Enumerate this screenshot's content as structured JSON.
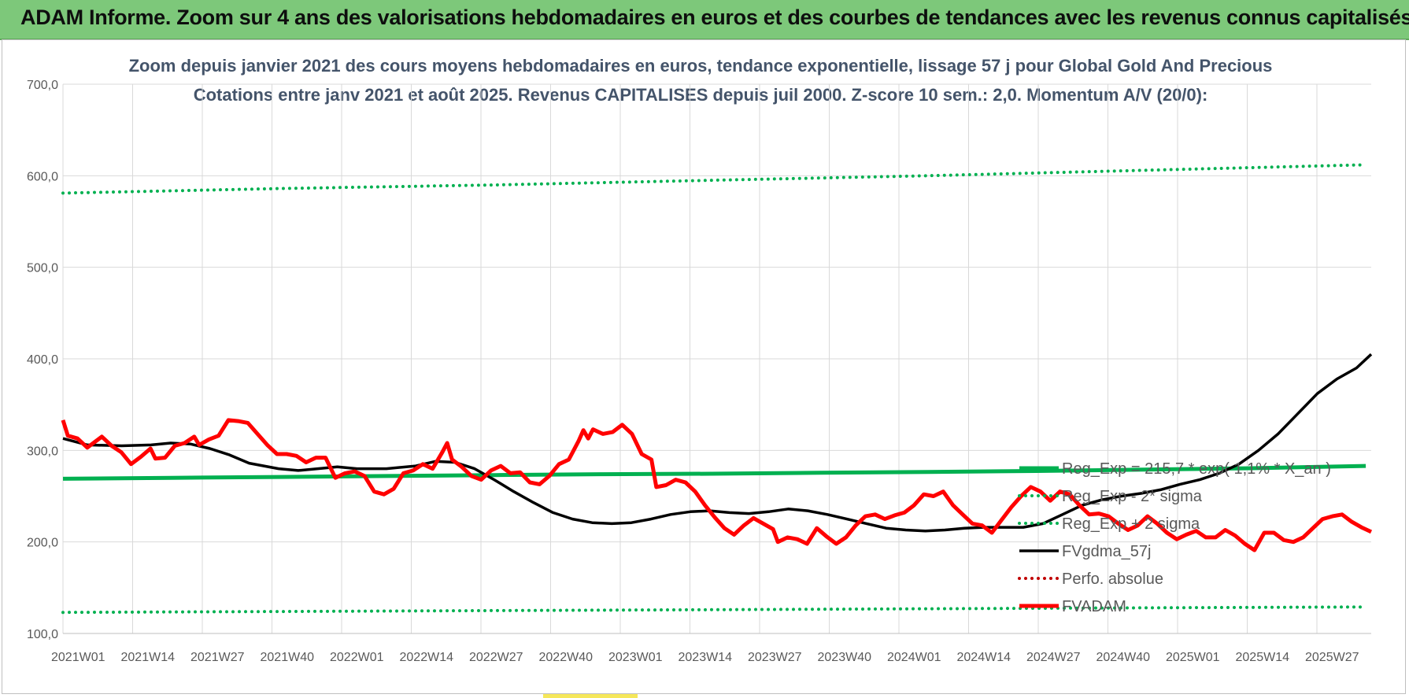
{
  "banner": {
    "title": "ADAM Informe. Zoom sur 4 ans des valorisations hebdomadaires en euros et des courbes de tendances avec les revenus connus capitalisés"
  },
  "colors": {
    "banner": "#7dc87a",
    "trend": "#00b050",
    "smooth": "#000000",
    "price": "#ff0000",
    "perf": "#c00000",
    "title": "#44546a"
  },
  "chart_data": {
    "type": "line",
    "title_line1": "Zoom depuis janvier 2021 des cours moyens hebdomadaires en euros, tendance exponentielle, lissage 57 j pour Global Gold And Precious",
    "title_line2": "Cotations entre janv 2021 et août 2025. Revenus CAPITALISES depuis juil 2000. Z-score 10 sem.: 2,0. Momentum A/V (20/0):",
    "xlabel": "",
    "ylabel": "",
    "ylim": [
      100,
      700
    ],
    "yticks": [
      "100,0",
      "200,0",
      "300,0",
      "400,0",
      "500,0",
      "600,0",
      "700,0"
    ],
    "xticks": [
      "2021W01",
      "2021W14",
      "2021W27",
      "2021W40",
      "2022W01",
      "2022W14",
      "2022W27",
      "2022W40",
      "2023W01",
      "2023W14",
      "2023W27",
      "2023W40",
      "2024W01",
      "2024W14",
      "2024W27",
      "2024W40",
      "2025W01",
      "2025W14",
      "2025W27"
    ],
    "x_total_weeks": 242,
    "grid": true,
    "legend_position": "bottom-right",
    "series": [
      {
        "name": "Reg_Exp = 215,7 * exp( 1,1% * X_an )",
        "style": "solid-thick",
        "color": "#00b050",
        "points": [
          [
            0,
            269
          ],
          [
            20,
            270
          ],
          [
            40,
            271
          ],
          [
            60,
            272
          ],
          [
            80,
            273
          ],
          [
            100,
            274
          ],
          [
            120,
            274.5
          ],
          [
            140,
            275.5
          ],
          [
            160,
            276.5
          ],
          [
            180,
            277.5
          ],
          [
            200,
            279
          ],
          [
            220,
            280.5
          ],
          [
            241,
            283
          ]
        ]
      },
      {
        "name": "Reg_Exp - 2* sigma",
        "style": "dotted",
        "color": "#00b050",
        "points": [
          [
            0,
            123
          ],
          [
            40,
            124
          ],
          [
            80,
            125
          ],
          [
            120,
            126
          ],
          [
            160,
            127
          ],
          [
            200,
            128
          ],
          [
            241,
            129
          ]
        ]
      },
      {
        "name": "Reg_Exp + 2 sigma",
        "style": "dotted",
        "color": "#00b050",
        "points": [
          [
            0,
            581
          ],
          [
            40,
            586
          ],
          [
            80,
            590
          ],
          [
            120,
            595
          ],
          [
            160,
            600
          ],
          [
            200,
            606
          ],
          [
            241,
            612
          ]
        ]
      },
      {
        "name": "FVgdma_57j",
        "style": "solid",
        "color": "#000000",
        "points": [
          [
            0,
            313
          ],
          [
            5,
            306
          ],
          [
            12,
            305
          ],
          [
            18,
            306
          ],
          [
            22,
            308
          ],
          [
            26,
            307
          ],
          [
            30,
            302
          ],
          [
            34,
            295
          ],
          [
            38,
            286
          ],
          [
            44,
            280
          ],
          [
            48,
            278
          ],
          [
            52,
            280
          ],
          [
            56,
            282
          ],
          [
            60,
            280
          ],
          [
            66,
            280
          ],
          [
            72,
            283
          ],
          [
            76,
            288
          ],
          [
            80,
            287
          ],
          [
            84,
            280
          ],
          [
            88,
            268
          ],
          [
            92,
            255
          ],
          [
            96,
            243
          ],
          [
            100,
            232
          ],
          [
            104,
            225
          ],
          [
            108,
            221
          ],
          [
            112,
            220
          ],
          [
            116,
            221
          ],
          [
            120,
            225
          ],
          [
            124,
            230
          ],
          [
            128,
            233
          ],
          [
            132,
            234
          ],
          [
            136,
            232
          ],
          [
            140,
            231
          ],
          [
            144,
            233
          ],
          [
            148,
            236
          ],
          [
            152,
            234
          ],
          [
            156,
            230
          ],
          [
            160,
            225
          ],
          [
            164,
            220
          ],
          [
            168,
            215
          ],
          [
            172,
            213
          ],
          [
            176,
            212
          ],
          [
            180,
            213
          ],
          [
            184,
            215
          ],
          [
            188,
            216
          ],
          [
            192,
            216
          ],
          [
            196,
            216
          ],
          [
            200,
            220
          ],
          [
            204,
            230
          ],
          [
            208,
            240
          ],
          [
            212,
            246
          ],
          [
            216,
            250
          ],
          [
            220,
            253
          ],
          [
            224,
            257
          ],
          [
            228,
            263
          ],
          [
            232,
            268
          ],
          [
            236,
            275
          ],
          [
            240,
            285
          ],
          [
            244,
            300
          ],
          [
            248,
            318
          ],
          [
            252,
            340
          ],
          [
            256,
            362
          ],
          [
            260,
            378
          ],
          [
            264,
            390
          ],
          [
            267,
            405
          ]
        ]
      },
      {
        "name": "Perfo. absolue",
        "style": "dotted",
        "color": "#c00000",
        "points": []
      },
      {
        "name": "FVADAM",
        "style": "solid-thick",
        "color": "#ff0000",
        "points": [
          [
            0,
            333
          ],
          [
            1,
            316
          ],
          [
            3,
            313
          ],
          [
            5,
            303
          ],
          [
            8,
            315
          ],
          [
            10,
            305
          ],
          [
            12,
            298
          ],
          [
            14,
            285
          ],
          [
            16,
            293
          ],
          [
            18,
            302
          ],
          [
            19,
            291
          ],
          [
            21,
            292
          ],
          [
            23,
            305
          ],
          [
            25,
            308
          ],
          [
            27,
            315
          ],
          [
            28,
            306
          ],
          [
            30,
            312
          ],
          [
            32,
            316
          ],
          [
            34,
            333
          ],
          [
            36,
            332
          ],
          [
            38,
            330
          ],
          [
            40,
            318
          ],
          [
            42,
            306
          ],
          [
            44,
            296
          ],
          [
            46,
            296
          ],
          [
            48,
            294
          ],
          [
            50,
            287
          ],
          [
            52,
            292
          ],
          [
            54,
            292
          ],
          [
            56,
            270
          ],
          [
            58,
            275
          ],
          [
            60,
            277
          ],
          [
            62,
            272
          ],
          [
            64,
            255
          ],
          [
            66,
            252
          ],
          [
            68,
            258
          ],
          [
            70,
            275
          ],
          [
            72,
            278
          ],
          [
            74,
            285
          ],
          [
            76,
            280
          ],
          [
            78,
            298
          ],
          [
            79,
            308
          ],
          [
            80,
            290
          ],
          [
            82,
            282
          ],
          [
            84,
            272
          ],
          [
            86,
            268
          ],
          [
            88,
            278
          ],
          [
            90,
            283
          ],
          [
            92,
            275
          ],
          [
            94,
            276
          ],
          [
            96,
            265
          ],
          [
            98,
            263
          ],
          [
            100,
            272
          ],
          [
            102,
            285
          ],
          [
            104,
            290
          ],
          [
            106,
            310
          ],
          [
            107,
            322
          ],
          [
            108,
            313
          ],
          [
            109,
            323
          ],
          [
            111,
            318
          ],
          [
            113,
            320
          ],
          [
            115,
            328
          ],
          [
            117,
            318
          ],
          [
            119,
            296
          ],
          [
            121,
            290
          ],
          [
            122,
            260
          ],
          [
            124,
            262
          ],
          [
            126,
            268
          ],
          [
            128,
            265
          ],
          [
            130,
            255
          ],
          [
            132,
            240
          ],
          [
            134,
            227
          ],
          [
            136,
            215
          ],
          [
            138,
            208
          ],
          [
            140,
            218
          ],
          [
            142,
            226
          ],
          [
            144,
            220
          ],
          [
            146,
            214
          ],
          [
            147,
            200
          ],
          [
            149,
            205
          ],
          [
            151,
            203
          ],
          [
            153,
            198
          ],
          [
            155,
            215
          ],
          [
            157,
            206
          ],
          [
            159,
            198
          ],
          [
            161,
            205
          ],
          [
            163,
            218
          ],
          [
            165,
            228
          ],
          [
            167,
            230
          ],
          [
            169,
            225
          ],
          [
            171,
            229
          ],
          [
            173,
            232
          ],
          [
            175,
            240
          ],
          [
            177,
            252
          ],
          [
            179,
            250
          ],
          [
            181,
            255
          ],
          [
            183,
            240
          ],
          [
            185,
            230
          ],
          [
            187,
            220
          ],
          [
            189,
            218
          ],
          [
            191,
            210
          ],
          [
            193,
            224
          ],
          [
            195,
            238
          ],
          [
            197,
            250
          ],
          [
            199,
            260
          ],
          [
            201,
            255
          ],
          [
            203,
            245
          ],
          [
            205,
            255
          ],
          [
            207,
            252
          ],
          [
            209,
            240
          ],
          [
            211,
            230
          ],
          [
            213,
            231
          ],
          [
            215,
            228
          ],
          [
            217,
            220
          ],
          [
            219,
            213
          ],
          [
            221,
            218
          ],
          [
            223,
            228
          ],
          [
            225,
            220
          ],
          [
            227,
            210
          ],
          [
            229,
            203
          ],
          [
            231,
            208
          ],
          [
            233,
            212
          ],
          [
            235,
            205
          ],
          [
            237,
            205
          ],
          [
            239,
            213
          ],
          [
            241,
            207
          ],
          [
            243,
            198
          ],
          [
            245,
            191
          ],
          [
            247,
            210
          ],
          [
            249,
            210
          ],
          [
            251,
            202
          ],
          [
            253,
            200
          ],
          [
            255,
            205
          ],
          [
            257,
            215
          ],
          [
            259,
            225
          ],
          [
            261,
            228
          ],
          [
            263,
            230
          ],
          [
            265,
            222
          ],
          [
            267,
            216
          ],
          [
            269,
            211
          ]
        ]
      }
    ]
  },
  "legend": {
    "items": [
      {
        "label": "Reg_Exp = 215,7 * exp( 1,1% * X_an )"
      },
      {
        "label": "Reg_Exp - 2* sigma"
      },
      {
        "label": "Reg_Exp + 2 sigma"
      },
      {
        "label": "FVgdma_57j"
      },
      {
        "label": "Perfo. absolue"
      },
      {
        "label": "FVADAM"
      }
    ]
  }
}
